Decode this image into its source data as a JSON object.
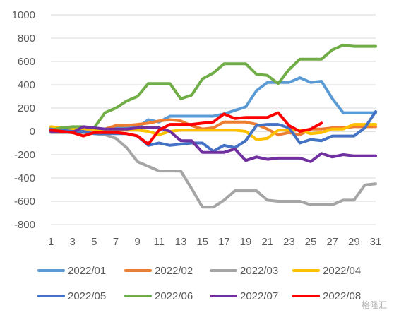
{
  "chart_data": {
    "type": "line",
    "title": "",
    "xlabel": "",
    "ylabel": "",
    "ylim": [
      -800,
      1000
    ],
    "yticks": [
      -800,
      -600,
      -400,
      -200,
      0,
      200,
      400,
      600,
      800,
      1000
    ],
    "xticks": [
      1,
      3,
      5,
      7,
      9,
      11,
      13,
      15,
      17,
      19,
      21,
      23,
      25,
      27,
      29,
      31
    ],
    "x": [
      1,
      2,
      3,
      4,
      5,
      6,
      7,
      8,
      9,
      10,
      11,
      12,
      13,
      14,
      15,
      16,
      17,
      18,
      19,
      20,
      21,
      22,
      23,
      24,
      25,
      26,
      27,
      28,
      29,
      30,
      31
    ],
    "grid": "horizontal",
    "legend_position": "bottom",
    "series": [
      {
        "name": "2022/01",
        "color": "#5B9BD5",
        "values": [
          30,
          30,
          30,
          20,
          20,
          20,
          30,
          30,
          30,
          100,
          80,
          130,
          130,
          130,
          130,
          130,
          150,
          180,
          210,
          350,
          420,
          420,
          420,
          460,
          420,
          430,
          280,
          160,
          160,
          160,
          160
        ]
      },
      {
        "name": "2022/02",
        "color": "#ED7D31",
        "values": [
          20,
          20,
          20,
          20,
          20,
          20,
          50,
          50,
          60,
          70,
          90,
          100,
          90,
          50,
          20,
          30,
          80,
          80,
          80,
          60,
          20,
          -30,
          -10,
          -30,
          20,
          20,
          30,
          30,
          40,
          40,
          40
        ]
      },
      {
        "name": "2022/03",
        "color": "#A5A5A5",
        "values": [
          -10,
          -10,
          -10,
          -10,
          -20,
          -30,
          -60,
          -140,
          -260,
          -300,
          -340,
          -340,
          -340,
          -490,
          -650,
          -650,
          -590,
          -510,
          -510,
          -510,
          -590,
          -600,
          -600,
          -600,
          -630,
          -630,
          -630,
          -590,
          -590,
          -460,
          -450
        ]
      },
      {
        "name": "2022/04",
        "color": "#FFC000",
        "values": [
          40,
          30,
          20,
          20,
          20,
          10,
          10,
          10,
          10,
          0,
          -30,
          0,
          10,
          10,
          10,
          10,
          10,
          10,
          0,
          -70,
          -60,
          10,
          10,
          10,
          -20,
          -10,
          20,
          20,
          60,
          60,
          60
        ]
      },
      {
        "name": "2022/05",
        "color": "#4472C4",
        "values": [
          20,
          10,
          0,
          0,
          -20,
          -20,
          -20,
          -20,
          -40,
          -120,
          -100,
          -120,
          -110,
          -100,
          -100,
          -170,
          -120,
          -140,
          -80,
          50,
          60,
          60,
          30,
          -100,
          -70,
          -80,
          -40,
          -40,
          -40,
          30,
          170
        ]
      },
      {
        "name": "2022/06",
        "color": "#70AD47",
        "values": [
          10,
          30,
          40,
          40,
          30,
          160,
          200,
          260,
          300,
          410,
          410,
          410,
          280,
          310,
          450,
          500,
          580,
          580,
          580,
          490,
          480,
          410,
          530,
          620,
          620,
          620,
          700,
          740,
          730,
          730,
          730
        ]
      },
      {
        "name": "2022/07",
        "color": "#7030A0",
        "values": [
          0,
          0,
          -10,
          40,
          30,
          20,
          20,
          20,
          30,
          30,
          30,
          0,
          -80,
          -80,
          -180,
          -180,
          -180,
          -150,
          -250,
          -220,
          -240,
          -230,
          -230,
          -230,
          -260,
          -190,
          -220,
          -200,
          -210,
          -210,
          -210
        ]
      },
      {
        "name": "2022/08",
        "color": "#FF0000",
        "values": [
          10,
          0,
          -10,
          -40,
          -10,
          -10,
          -10,
          -20,
          -40,
          -110,
          10,
          60,
          60,
          60,
          70,
          80,
          150,
          110,
          120,
          120,
          120,
          160,
          50,
          0,
          20,
          70,
          null,
          null,
          null,
          null,
          null
        ]
      }
    ]
  },
  "watermark": "格隆汇"
}
